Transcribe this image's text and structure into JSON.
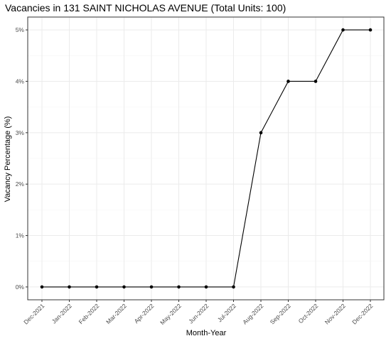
{
  "chart_data": {
    "type": "line",
    "title": "Vacancies in 131 SAINT NICHOLAS AVENUE (Total Units: 100)",
    "xlabel": "Month-Year",
    "ylabel": "Vacancy Percentage (%)",
    "categories": [
      "Dec-2021",
      "Jan-2022",
      "Feb-2022",
      "Mar-2022",
      "Apr-2022",
      "May-2022",
      "Jun-2022",
      "Jul-2022",
      "Aug-2022",
      "Sep-2022",
      "Oct-2022",
      "Nov-2022",
      "Dec-2022"
    ],
    "series": [
      {
        "values": [
          0,
          0,
          0,
          0,
          0,
          0,
          0,
          0,
          3,
          4,
          4,
          5,
          5
        ]
      }
    ],
    "ylim": [
      -0.25,
      5.25
    ],
    "yticks": [
      0,
      1,
      2,
      3,
      4,
      5
    ],
    "ytick_labels": [
      "0%",
      "1%",
      "2%",
      "3%",
      "4%",
      "5%"
    ],
    "grid": true,
    "colors": {
      "line": "#000000",
      "grid_major": "#ebebeb",
      "grid_minor": "#f5f5f5",
      "panel_border": "#333333"
    }
  }
}
